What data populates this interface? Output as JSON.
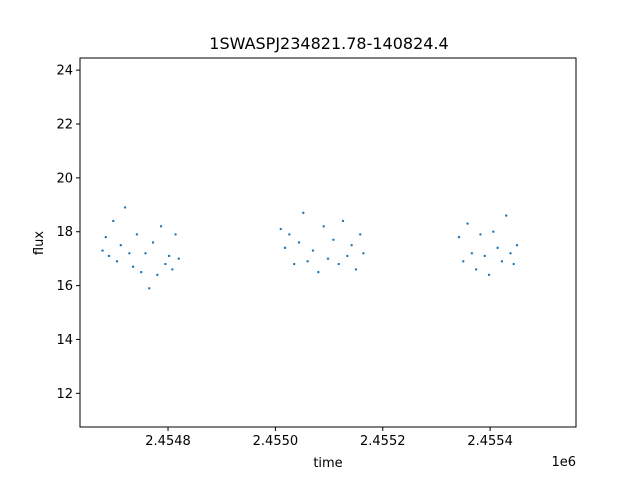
{
  "chart_data": {
    "type": "scatter",
    "title": "1SWASPJ234821.78-140824.4",
    "xlabel": "time",
    "ylabel": "flux",
    "x_offset_label": "1e6",
    "x_scale_factor": 1000000,
    "xlim": [
      2454636,
      2455560
    ],
    "ylim": [
      10.75,
      24.45
    ],
    "x_ticks": [
      {
        "value": 2454800,
        "label": "2.4548"
      },
      {
        "value": 2455000,
        "label": "2.4550"
      },
      {
        "value": 2455200,
        "label": "2.4552"
      },
      {
        "value": 2455400,
        "label": "2.4554"
      }
    ],
    "y_ticks": [
      {
        "value": 12,
        "label": "12"
      },
      {
        "value": 14,
        "label": "14"
      },
      {
        "value": 16,
        "label": "16"
      },
      {
        "value": 18,
        "label": "18"
      },
      {
        "value": 20,
        "label": "20"
      },
      {
        "value": 22,
        "label": "22"
      },
      {
        "value": 24,
        "label": "24"
      }
    ],
    "grid": false,
    "marker_color": "#1f77b4",
    "series": [
      {
        "x": [
          2454678,
          2454684,
          2454690,
          2454698,
          2454705,
          2454712,
          2454720,
          2454728,
          2454735,
          2454742,
          2454750,
          2454758,
          2454765,
          2454772,
          2454780,
          2454787,
          2454795,
          2454802,
          2454808,
          2454814,
          2454820,
          2455010,
          2455018,
          2455026,
          2455035,
          2455044,
          2455052,
          2455060,
          2455070,
          2455080,
          2455090,
          2455098,
          2455108,
          2455118,
          2455126,
          2455134,
          2455142,
          2455150,
          2455158,
          2455164,
          2455342,
          2455350,
          2455358,
          2455366,
          2455374,
          2455382,
          2455390,
          2455398,
          2455406,
          2455414,
          2455422,
          2455430,
          2455438,
          2455444,
          2455450
        ],
        "y": [
          17.3,
          17.8,
          17.1,
          18.4,
          16.9,
          17.5,
          18.9,
          17.2,
          16.7,
          17.9,
          16.5,
          17.2,
          15.9,
          17.6,
          16.4,
          18.2,
          16.8,
          17.1,
          16.6,
          17.9,
          17.0,
          18.1,
          17.4,
          17.9,
          16.8,
          17.6,
          18.7,
          16.9,
          17.3,
          16.5,
          18.2,
          17.0,
          17.7,
          16.8,
          18.4,
          17.1,
          17.5,
          16.6,
          17.9,
          17.2,
          17.8,
          16.9,
          18.3,
          17.2,
          16.6,
          17.9,
          17.1,
          16.4,
          18.0,
          17.4,
          16.9,
          18.6,
          17.2,
          16.8,
          17.5
        ]
      }
    ]
  }
}
